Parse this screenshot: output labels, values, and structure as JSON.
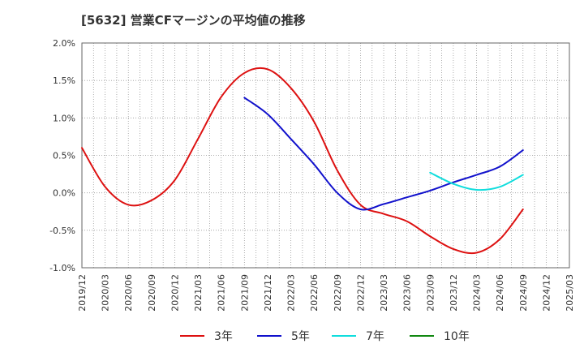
{
  "chart_data": {
    "type": "line",
    "title": "[5632]  営業CFマージンの平均値の推移",
    "y_unit": "%",
    "ylim": [
      -1.0,
      2.0
    ],
    "yticks": [
      2.0,
      1.5,
      1.0,
      0.5,
      0.0,
      -0.5,
      -1.0
    ],
    "ytick_labels": [
      "2.0%",
      "1.5%",
      "1.0%",
      "0.5%",
      "0.0%",
      "-0.5%",
      "-1.0%"
    ],
    "x_tick_labels": [
      "2019/12",
      "2020/03",
      "2020/06",
      "2020/09",
      "2020/12",
      "2021/03",
      "2021/06",
      "2021/09",
      "2021/12",
      "2022/03",
      "2022/06",
      "2022/09",
      "2022/12",
      "2023/03",
      "2023/06",
      "2023/09",
      "2023/12",
      "2024/03",
      "2024/06",
      "2024/09",
      "2024/12",
      "2025/03"
    ],
    "grid": true,
    "legend_position": "bottom",
    "series": [
      {
        "name": "3年",
        "color": "#dd1111",
        "x": [
          "2019/12",
          "2020/03",
          "2020/06",
          "2020/09",
          "2020/12",
          "2021/03",
          "2021/06",
          "2021/09",
          "2021/12",
          "2022/03",
          "2022/06",
          "2022/09",
          "2022/12",
          "2023/03",
          "2023/06",
          "2023/09",
          "2023/12",
          "2024/03",
          "2024/06",
          "2024/09"
        ],
        "values": [
          0.6,
          0.08,
          -0.16,
          -0.1,
          0.17,
          0.72,
          1.28,
          1.6,
          1.65,
          1.4,
          0.95,
          0.3,
          -0.16,
          -0.28,
          -0.38,
          -0.58,
          -0.75,
          -0.8,
          -0.62,
          -0.22
        ]
      },
      {
        "name": "5年",
        "color": "#1111cc",
        "x": [
          "2021/09",
          "2021/12",
          "2022/03",
          "2022/06",
          "2022/09",
          "2022/12",
          "2023/03",
          "2023/06",
          "2023/09",
          "2023/12",
          "2024/03",
          "2024/06",
          "2024/09"
        ],
        "values": [
          1.27,
          1.05,
          0.72,
          0.38,
          0.0,
          -0.22,
          -0.15,
          -0.06,
          0.03,
          0.14,
          0.24,
          0.35,
          0.57
        ]
      },
      {
        "name": "7年",
        "color": "#11dddd",
        "x": [
          "2023/09",
          "2023/12",
          "2024/03",
          "2024/06",
          "2024/09"
        ],
        "values": [
          0.27,
          0.12,
          0.04,
          0.08,
          0.24
        ]
      },
      {
        "name": "10年",
        "color": "#118811",
        "x": [],
        "values": []
      }
    ]
  }
}
